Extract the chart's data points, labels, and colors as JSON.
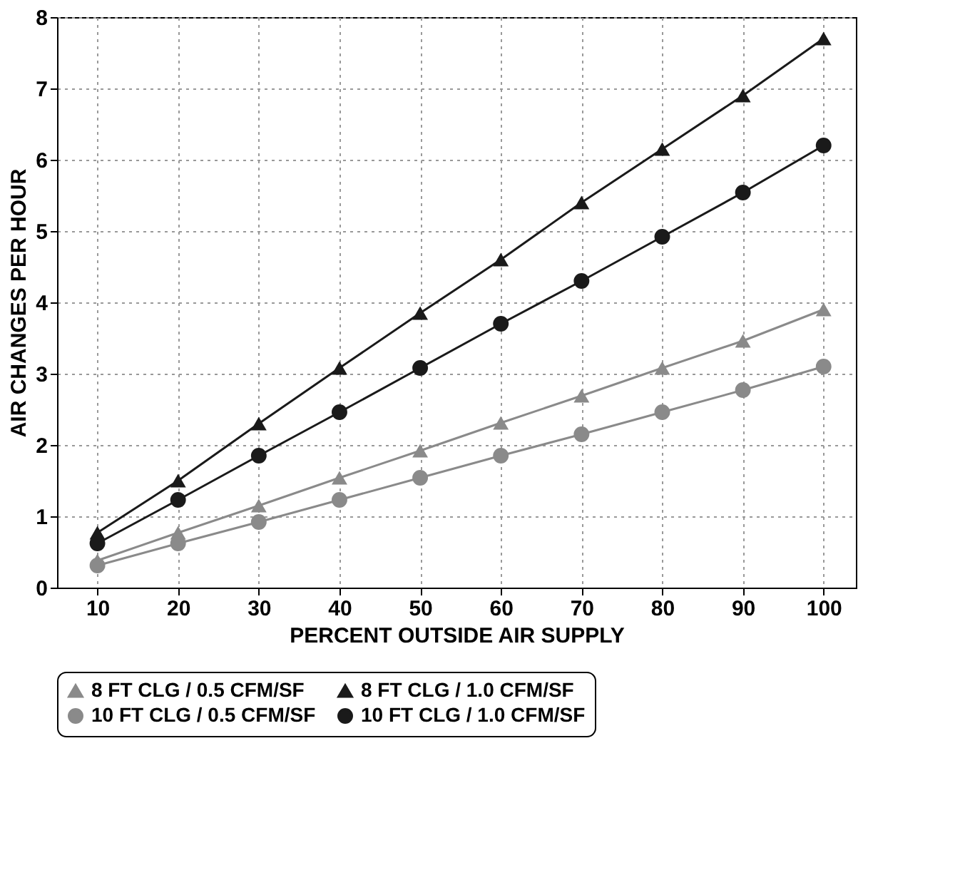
{
  "chart_data": {
    "type": "line",
    "xlabel": "PERCENT OUTSIDE AIR SUPPLY",
    "ylabel": "AIR CHANGES PER HOUR",
    "x": [
      10,
      20,
      30,
      40,
      50,
      60,
      70,
      80,
      90,
      100
    ],
    "xlim": [
      5,
      104
    ],
    "xticks": [
      10,
      20,
      30,
      40,
      50,
      60,
      70,
      80,
      90,
      100
    ],
    "ylim": [
      0,
      8
    ],
    "yticks": [
      0,
      1,
      2,
      3,
      4,
      5,
      6,
      7,
      8
    ],
    "grid": true,
    "legend": "bottom",
    "series": [
      {
        "name": "8 FT CLG / 0.5 CFM/SF",
        "color": "#8a8a8a",
        "marker": "triangle",
        "values": [
          0.38,
          0.77,
          1.15,
          1.54,
          1.92,
          2.31,
          2.69,
          3.08,
          3.46,
          3.9
        ]
      },
      {
        "name": "8 FT CLG / 1.0 CFM/SF",
        "color": "#1a1a1a",
        "marker": "triangle",
        "values": [
          0.77,
          1.5,
          2.3,
          3.08,
          3.85,
          4.6,
          5.4,
          6.15,
          6.9,
          7.7
        ]
      },
      {
        "name": "10 FT CLG / 0.5 CFM/SF",
        "color": "#8a8a8a",
        "marker": "circle",
        "values": [
          0.31,
          0.62,
          0.92,
          1.23,
          1.54,
          1.85,
          2.15,
          2.46,
          2.77,
          3.1
        ]
      },
      {
        "name": "10 FT CLG / 1.0 CFM/SF",
        "color": "#1a1a1a",
        "marker": "circle",
        "values": [
          0.62,
          1.23,
          1.85,
          2.46,
          3.08,
          3.7,
          4.3,
          4.92,
          5.54,
          6.2
        ]
      }
    ]
  }
}
